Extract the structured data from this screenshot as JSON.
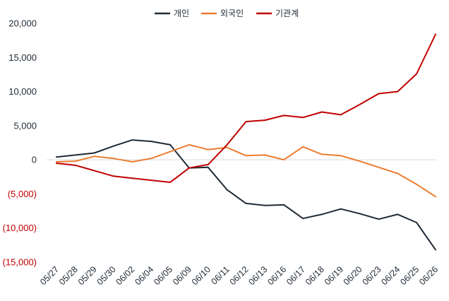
{
  "chart_data": {
    "type": "line",
    "categories": [
      "05/27",
      "05/28",
      "05/29",
      "05/30",
      "06/02",
      "06/04",
      "06/05",
      "06/09",
      "06/10",
      "06/11",
      "06/12",
      "06/13",
      "06/16",
      "06/17",
      "06/18",
      "06/19",
      "06/20",
      "06/23",
      "06/24",
      "06/25",
      "06/26"
    ],
    "series": [
      {
        "name": "개인",
        "color": "#1f2a36",
        "values": [
          400,
          700,
          1000,
          2000,
          2900,
          2700,
          2200,
          -1200,
          -1100,
          -4400,
          -6400,
          -6700,
          -6600,
          -8600,
          -8000,
          -7200,
          -7900,
          -8700,
          -8000,
          -9200,
          -13200
        ]
      },
      {
        "name": "외국인",
        "color": "#ed7d31",
        "values": [
          -300,
          -200,
          500,
          200,
          -300,
          200,
          1200,
          2200,
          1500,
          1800,
          600,
          700,
          0,
          1900,
          800,
          600,
          -200,
          -1100,
          -2000,
          -3600,
          -5400
        ]
      },
      {
        "name": "기관계",
        "color": "#c00000",
        "values": [
          -500,
          -800,
          -1600,
          -2400,
          -2700,
          -3000,
          -3300,
          -1200,
          -700,
          2200,
          5600,
          5800,
          6500,
          6200,
          7000,
          6600,
          8100,
          9700,
          10000,
          12600,
          18400
        ]
      }
    ],
    "ylim": [
      -15000,
      20000
    ],
    "yticks": [
      "20,000",
      "15,000",
      "10,000",
      "5,000",
      "0",
      "(5,000)",
      "(10,000)",
      "(15,000)"
    ],
    "ytick_values": [
      20000,
      15000,
      10000,
      5000,
      0,
      -5000,
      -10000,
      -15000
    ],
    "grid": false,
    "legend_position": "top-center",
    "negative_tick_color": "#c00000"
  }
}
